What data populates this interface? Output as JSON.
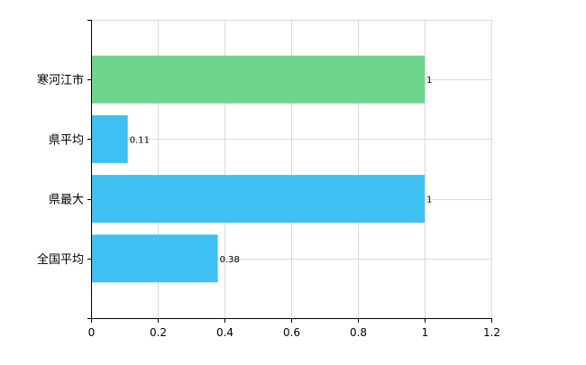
{
  "chart_data": {
    "type": "bar",
    "orientation": "horizontal",
    "categories": [
      "寒河江市",
      "県平均",
      "県最大",
      "全国平均"
    ],
    "values": [
      1,
      0.11,
      1,
      0.38
    ],
    "data_labels": [
      "1",
      "0.11",
      "1",
      "0.38"
    ],
    "bar_colors": [
      "#6dd58c",
      "#3ec1f2",
      "#3ec1f2",
      "#3ec1f2"
    ],
    "xlim": [
      0,
      1.2
    ],
    "x_ticks": [
      0,
      0.2,
      0.4,
      0.6,
      0.8,
      1,
      1.2
    ],
    "x_tick_labels": [
      "0",
      "0.2",
      "0.4",
      "0.6",
      "0.8",
      "1",
      "1.2"
    ],
    "grid": true,
    "legend": "none"
  }
}
